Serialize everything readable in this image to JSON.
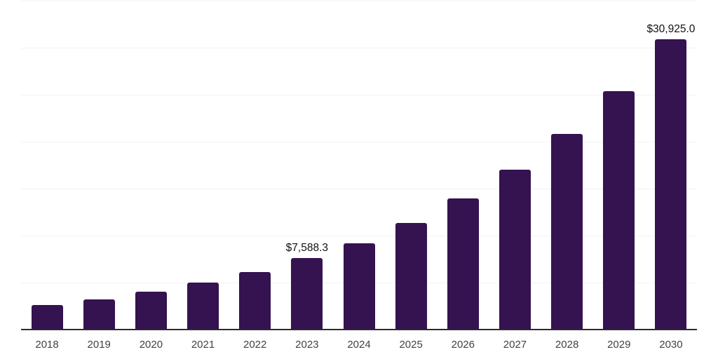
{
  "chart_data": {
    "type": "bar",
    "title": "",
    "xlabel": "",
    "ylabel": "",
    "categories": [
      "2018",
      "2019",
      "2020",
      "2021",
      "2022",
      "2023",
      "2024",
      "2025",
      "2026",
      "2027",
      "2028",
      "2029",
      "2030"
    ],
    "values": [
      2575,
      3225,
      4045,
      4985,
      6135,
      7588.3,
      9200,
      11320,
      13980,
      17040,
      20840,
      25370,
      30925.0
    ],
    "data_labels": [
      "",
      "",
      "",
      "",
      "",
      "$7,588.3",
      "",
      "",
      "",
      "",
      "",
      "",
      "$30,925.0"
    ],
    "ylim": [
      0,
      35000
    ],
    "grid_step": 5000,
    "grid_visible": true,
    "legend_position": "none",
    "colors": {
      "bar": "#351250",
      "axis_line": "#2b2b2b",
      "gridline": "#f2f2f2",
      "tick_label": "#424242",
      "value_label": "#111111",
      "background": "#ffffff"
    }
  }
}
